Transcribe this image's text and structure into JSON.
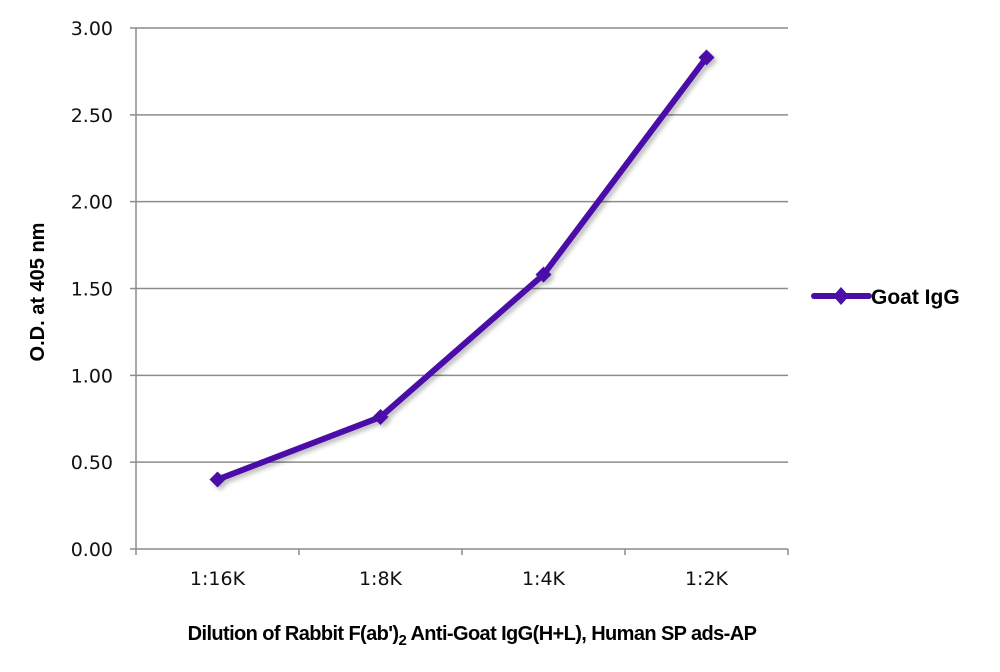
{
  "chart_data": {
    "type": "line",
    "title": "",
    "xlabel": "Dilution of Rabbit F(ab')2 Anti-Goat IgG(H+L), Human SP ads-AP",
    "xlabel_parts": {
      "before_sub": "Dilution of Rabbit F(ab')",
      "subscript": "2",
      "after_sub": " Anti-Goat IgG(H+L), Human SP ads-AP"
    },
    "ylabel": "O.D. at 405 nm",
    "categories": [
      "1:16K",
      "1:8K",
      "1:4K",
      "1:2K"
    ],
    "series": [
      {
        "name": "Goat IgG",
        "color": "#4B0FA8",
        "marker": "diamond",
        "values": [
          0.4,
          0.76,
          1.58,
          2.83
        ]
      }
    ],
    "ylim": [
      0,
      3
    ],
    "yticks": [
      "0.00",
      "0.50",
      "1.00",
      "1.50",
      "2.00",
      "2.50",
      "3.00"
    ],
    "grid": true,
    "legend_position": "right"
  }
}
